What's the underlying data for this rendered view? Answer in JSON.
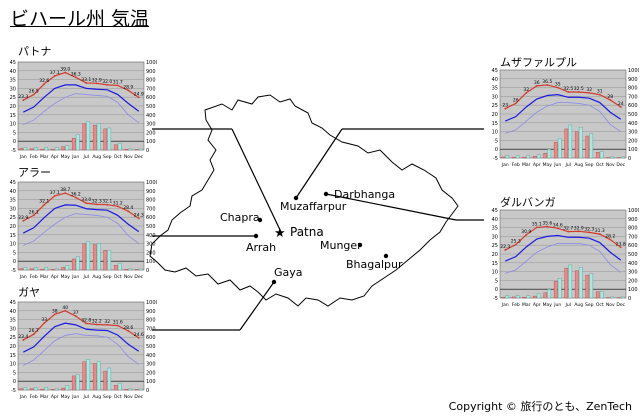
{
  "title": "ビハール州 気温",
  "copyright": "Copyright © 旅行のとも、ZenTech",
  "map": {
    "cities": [
      {
        "name": "Patna",
        "marker": "star"
      },
      {
        "name": "Muzaffarpur",
        "marker": "dot"
      },
      {
        "name": "Darbhanga",
        "marker": "dot"
      },
      {
        "name": "Chapra",
        "marker": "dot"
      },
      {
        "name": "Arrah",
        "marker": "dot"
      },
      {
        "name": "Munger",
        "marker": "dot"
      },
      {
        "name": "Bhagalpur",
        "marker": "dot"
      },
      {
        "name": "Gaya",
        "marker": "dot"
      }
    ]
  },
  "colors": {
    "max_temp": "#d23a2a",
    "mean_temp": "#1a1ae0",
    "min_temp": "#8c8ce8",
    "precipitation": "#e88a8a",
    "rain_days": "#a8e8e0",
    "plot_bg": "#c8c8c8"
  },
  "chart_data": [
    {
      "type": "line",
      "city": "パトナ",
      "months": [
        "Jan",
        "Feb",
        "Mar",
        "Apr",
        "May",
        "Jun",
        "Jul",
        "Aug",
        "Sep",
        "Oct",
        "Nov",
        "Dec"
      ],
      "left_ticks": [
        "45",
        "40",
        "35",
        "30",
        "25",
        "20",
        "15",
        "10",
        "5",
        "0",
        "-5"
      ],
      "right_ticks": [
        "1000",
        "900",
        "800",
        "700",
        "600",
        "500",
        "400",
        "300",
        "200",
        "100",
        "0"
      ],
      "ylim_temp": [
        -5,
        45
      ],
      "ylim_precip": [
        0,
        1000
      ],
      "series": [
        {
          "name": "max",
          "values": [
            23.3,
            26.5,
            32.6,
            37.1,
            39.0,
            36.3,
            33.1,
            32.9,
            32.0,
            31.7,
            28.9,
            24.9
          ]
        },
        {
          "name": "mean",
          "values": [
            16.5,
            19.4,
            25.0,
            30.0,
            32.0,
            32.0,
            30.0,
            29.5,
            29.2,
            26.5,
            21.5,
            17.0
          ]
        },
        {
          "name": "min",
          "values": [
            9.5,
            12.0,
            17.0,
            21.5,
            25.0,
            27.0,
            26.5,
            26.0,
            25.5,
            22.0,
            15.0,
            10.5
          ]
        },
        {
          "name": "precipitation",
          "values": [
            18,
            15,
            9,
            8,
            38,
            134,
            299,
            281,
            240,
            59,
            7,
            5
          ]
        },
        {
          "name": "rain_days",
          "values": [
            1,
            1,
            1,
            1,
            2,
            7,
            13,
            12,
            10,
            3,
            0.5,
            0.5
          ]
        }
      ],
      "max_labels": [
        "23.3",
        "26.5",
        "32.6",
        "37.1",
        "39.0",
        "36.3",
        "33.1",
        "32.9",
        "32.0",
        "31.7",
        "28.9",
        "24.9"
      ]
    },
    {
      "type": "line",
      "city": "アラー",
      "months": [
        "Jan",
        "Feb",
        "Mar",
        "Apr",
        "May",
        "Jun",
        "Jul",
        "Aug",
        "Sep",
        "Oct",
        "Nov",
        "Dec"
      ],
      "left_ticks": [
        "45",
        "40",
        "35",
        "30",
        "25",
        "20",
        "15",
        "10",
        "5",
        "0",
        "-5"
      ],
      "right_ticks": [
        "1000",
        "900",
        "800",
        "700",
        "600",
        "500",
        "400",
        "300",
        "200",
        "100",
        "0"
      ],
      "ylim_temp": [
        -5,
        45
      ],
      "ylim_precip": [
        0,
        1000
      ],
      "series": [
        {
          "name": "max",
          "values": [
            22.9,
            26.1,
            32.1,
            37.1,
            38.7,
            36.2,
            33.0,
            32.3,
            32.1,
            31.2,
            28.4,
            24.3
          ]
        },
        {
          "name": "mean",
          "values": [
            16.0,
            19.0,
            24.8,
            30.0,
            32.0,
            31.8,
            29.8,
            29.3,
            29.0,
            26.0,
            21.0,
            16.8
          ]
        },
        {
          "name": "min",
          "values": [
            9.0,
            11.5,
            16.5,
            21.0,
            25.0,
            27.0,
            26.5,
            26.0,
            25.0,
            21.5,
            14.5,
            10.0
          ]
        },
        {
          "name": "precipitation",
          "values": [
            17,
            14,
            9,
            7,
            30,
            125,
            300,
            290,
            225,
            55,
            8,
            5
          ]
        },
        {
          "name": "rain_days",
          "values": [
            1,
            1,
            1,
            0.5,
            2,
            6,
            13,
            12,
            9,
            3,
            0.5,
            0.5
          ]
        }
      ],
      "max_labels": [
        "22.9",
        "26.1",
        "32.1",
        "37.1",
        "38.7",
        "36.2",
        "33.0",
        "32.3",
        "32.1",
        "31.2",
        "28.4",
        "24.3"
      ]
    },
    {
      "type": "line",
      "city": "ガヤ",
      "months": [
        "Jan",
        "Feb",
        "Mar",
        "Apr",
        "May",
        "Jun",
        "Jul",
        "Aug",
        "Sep",
        "Oct",
        "Nov",
        "Dec"
      ],
      "left_ticks": [
        "45",
        "40",
        "35",
        "30",
        "25",
        "20",
        "15",
        "10",
        "5",
        "0",
        "-5"
      ],
      "right_ticks": [
        "1000",
        "900",
        "800",
        "700",
        "600",
        "500",
        "400",
        "300",
        "200",
        "100",
        "0"
      ],
      "ylim_temp": [
        -5,
        45
      ],
      "ylim_precip": [
        0,
        1000
      ],
      "series": [
        {
          "name": "max",
          "values": [
            23.4,
            26.7,
            33.0,
            38.0,
            40.0,
            37.0,
            32.8,
            32.2,
            32.0,
            31.6,
            28.6,
            24.6
          ]
        },
        {
          "name": "mean",
          "values": [
            16.5,
            19.5,
            25.5,
            31.0,
            33.0,
            32.0,
            29.5,
            29.0,
            28.8,
            26.2,
            21.0,
            17.0
          ]
        },
        {
          "name": "min",
          "values": [
            9.0,
            12.0,
            17.5,
            23.0,
            26.0,
            27.0,
            26.0,
            25.8,
            25.0,
            21.0,
            14.0,
            9.5
          ]
        },
        {
          "name": "precipitation",
          "values": [
            16,
            16,
            10,
            7,
            22,
            160,
            320,
            300,
            215,
            55,
            8,
            5
          ]
        },
        {
          "name": "rain_days",
          "values": [
            1,
            1,
            1,
            0.5,
            2,
            7,
            14,
            13,
            10,
            3,
            0.5,
            0.5
          ]
        }
      ],
      "max_labels": [
        "23.4",
        "26.7",
        "33",
        "38",
        "40",
        "37",
        "32.8",
        "32.2",
        "32",
        "31.6",
        "28.6",
        "24.6"
      ]
    },
    {
      "type": "line",
      "city": "ムザファルプル",
      "months": [
        "Jan",
        "Feb",
        "Mar",
        "Apr",
        "May",
        "Jun",
        "Jul",
        "Aug",
        "Sep",
        "Oct",
        "Nov",
        "Dec"
      ],
      "left_ticks": [
        "45",
        "40",
        "35",
        "30",
        "25",
        "20",
        "15",
        "10",
        "5",
        "0",
        "-5"
      ],
      "right_ticks": [
        "1000",
        "900",
        "800",
        "700",
        "600",
        "500",
        "400",
        "300",
        "200",
        "100",
        "0"
      ],
      "ylim_temp": [
        -5,
        45
      ],
      "ylim_precip": [
        0,
        1000
      ],
      "series": [
        {
          "name": "max",
          "values": [
            23.0,
            26.0,
            32.0,
            36.0,
            36.5,
            35.0,
            32.5,
            32.5,
            32.0,
            31.0,
            28.0,
            24.0
          ]
        },
        {
          "name": "mean",
          "values": [
            16.0,
            18.5,
            24.0,
            28.5,
            30.5,
            31.0,
            29.5,
            29.5,
            29.0,
            26.5,
            21.0,
            17.0
          ]
        },
        {
          "name": "min",
          "values": [
            9.0,
            11.0,
            16.0,
            21.0,
            24.5,
            26.5,
            26.5,
            26.0,
            25.0,
            21.5,
            14.0,
            10.0
          ]
        },
        {
          "name": "precipitation",
          "values": [
            12,
            10,
            8,
            20,
            55,
            180,
            330,
            300,
            250,
            65,
            5,
            4
          ]
        },
        {
          "name": "rain_days",
          "values": [
            1,
            1,
            1,
            1.5,
            4,
            9,
            15,
            14,
            11,
            3,
            0.5,
            0.5
          ]
        }
      ],
      "max_labels": [
        "23",
        "26",
        "32",
        "36",
        "36.5",
        "35",
        "32.5",
        "32.5",
        "32",
        "31",
        "28",
        "24"
      ]
    },
    {
      "type": "line",
      "city": "ダルバンガ",
      "months": [
        "Jan",
        "Feb",
        "Mar",
        "Apr",
        "May",
        "Jun",
        "Jul",
        "Aug",
        "Sep",
        "Oct",
        "Nov",
        "Dec"
      ],
      "left_ticks": [
        "45",
        "40",
        "35",
        "30",
        "25",
        "20",
        "15",
        "10",
        "5",
        "0",
        "-5"
      ],
      "right_ticks": [
        "1000",
        "900",
        "800",
        "700",
        "600",
        "500",
        "400",
        "300",
        "200",
        "100",
        "0"
      ],
      "ylim_temp": [
        -5,
        45
      ],
      "ylim_precip": [
        0,
        1000
      ],
      "series": [
        {
          "name": "max",
          "values": [
            22.3,
            25.3,
            30.9,
            35.1,
            35.6,
            34.6,
            32.7,
            32.9,
            32.3,
            31.3,
            28.2,
            23.8
          ]
        },
        {
          "name": "mean",
          "values": [
            16.0,
            18.5,
            24.0,
            28.5,
            30.0,
            30.5,
            29.5,
            29.5,
            29.0,
            26.5,
            21.0,
            16.5
          ]
        },
        {
          "name": "min",
          "values": [
            9.0,
            11.0,
            16.0,
            21.0,
            24.0,
            26.0,
            26.0,
            26.0,
            25.0,
            21.5,
            14.0,
            9.5
          ]
        },
        {
          "name": "precipitation",
          "values": [
            10,
            12,
            9,
            22,
            60,
            190,
            340,
            310,
            260,
            70,
            5,
            4
          ]
        },
        {
          "name": "rain_days",
          "values": [
            1,
            1,
            1,
            2,
            4,
            9,
            15,
            14,
            11,
            3,
            0.5,
            0.5
          ]
        }
      ],
      "max_labels": [
        "22.3",
        "25.3",
        "30.9",
        "35.1",
        "35.6",
        "34.6",
        "32.7",
        "32.9",
        "32.3",
        "31.3",
        "28.2",
        "23.8"
      ]
    }
  ]
}
